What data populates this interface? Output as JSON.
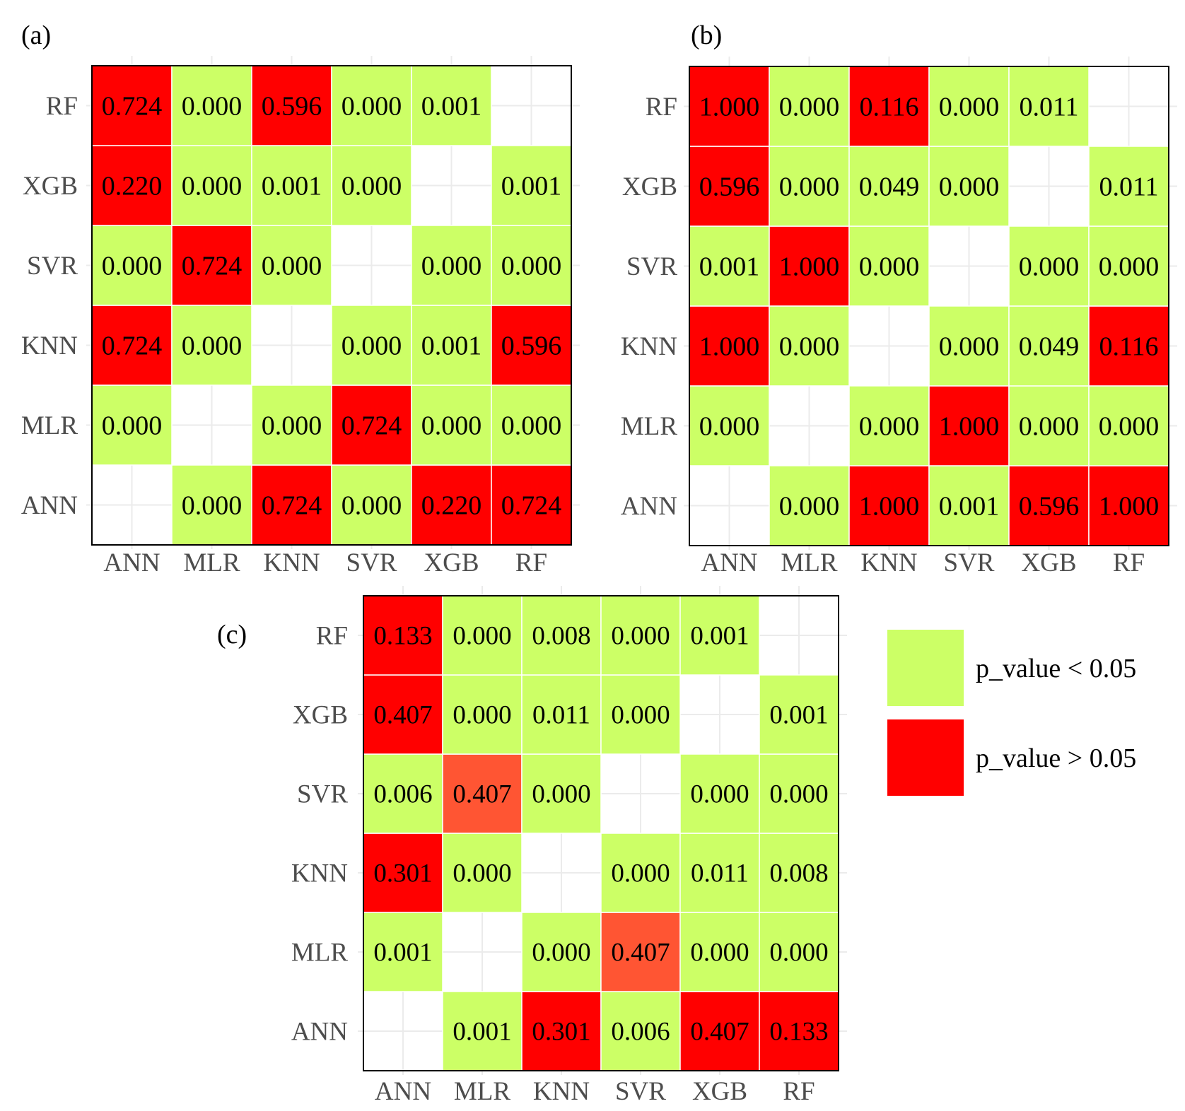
{
  "colors": {
    "significant": "#ccff66",
    "not_significant": "#ff0000",
    "not_significant_light": "#ff5533",
    "empty": "#ffffff",
    "grid": "#ebebeb",
    "border": "#000000"
  },
  "chart_data": [
    {
      "type": "heatmap",
      "panel_label": "(a)",
      "x_categories": [
        "ANN",
        "MLR",
        "KNN",
        "SVR",
        "XGB",
        "RF"
      ],
      "y_categories": [
        "ANN",
        "MLR",
        "KNN",
        "SVR",
        "XGB",
        "RF"
      ],
      "cells": [
        {
          "x": "MLR",
          "y": "ANN",
          "value": "0.000",
          "class": "significant"
        },
        {
          "x": "KNN",
          "y": "ANN",
          "value": "0.724",
          "class": "not_significant"
        },
        {
          "x": "SVR",
          "y": "ANN",
          "value": "0.000",
          "class": "significant"
        },
        {
          "x": "XGB",
          "y": "ANN",
          "value": "0.220",
          "class": "not_significant"
        },
        {
          "x": "RF",
          "y": "ANN",
          "value": "0.724",
          "class": "not_significant"
        },
        {
          "x": "ANN",
          "y": "MLR",
          "value": "0.000",
          "class": "significant"
        },
        {
          "x": "KNN",
          "y": "MLR",
          "value": "0.000",
          "class": "significant"
        },
        {
          "x": "SVR",
          "y": "MLR",
          "value": "0.724",
          "class": "not_significant"
        },
        {
          "x": "XGB",
          "y": "MLR",
          "value": "0.000",
          "class": "significant"
        },
        {
          "x": "RF",
          "y": "MLR",
          "value": "0.000",
          "class": "significant"
        },
        {
          "x": "ANN",
          "y": "KNN",
          "value": "0.724",
          "class": "not_significant"
        },
        {
          "x": "MLR",
          "y": "KNN",
          "value": "0.000",
          "class": "significant"
        },
        {
          "x": "SVR",
          "y": "KNN",
          "value": "0.000",
          "class": "significant"
        },
        {
          "x": "XGB",
          "y": "KNN",
          "value": "0.001",
          "class": "significant"
        },
        {
          "x": "RF",
          "y": "KNN",
          "value": "0.596",
          "class": "not_significant"
        },
        {
          "x": "ANN",
          "y": "SVR",
          "value": "0.000",
          "class": "significant"
        },
        {
          "x": "MLR",
          "y": "SVR",
          "value": "0.724",
          "class": "not_significant"
        },
        {
          "x": "KNN",
          "y": "SVR",
          "value": "0.000",
          "class": "significant"
        },
        {
          "x": "XGB",
          "y": "SVR",
          "value": "0.000",
          "class": "significant"
        },
        {
          "x": "RF",
          "y": "SVR",
          "value": "0.000",
          "class": "significant"
        },
        {
          "x": "ANN",
          "y": "XGB",
          "value": "0.220",
          "class": "not_significant"
        },
        {
          "x": "MLR",
          "y": "XGB",
          "value": "0.000",
          "class": "significant"
        },
        {
          "x": "KNN",
          "y": "XGB",
          "value": "0.001",
          "class": "significant"
        },
        {
          "x": "SVR",
          "y": "XGB",
          "value": "0.000",
          "class": "significant"
        },
        {
          "x": "RF",
          "y": "XGB",
          "value": "0.001",
          "class": "significant"
        },
        {
          "x": "ANN",
          "y": "RF",
          "value": "0.724",
          "class": "not_significant"
        },
        {
          "x": "MLR",
          "y": "RF",
          "value": "0.000",
          "class": "significant"
        },
        {
          "x": "KNN",
          "y": "RF",
          "value": "0.596",
          "class": "not_significant"
        },
        {
          "x": "SVR",
          "y": "RF",
          "value": "0.000",
          "class": "significant"
        },
        {
          "x": "XGB",
          "y": "RF",
          "value": "0.001",
          "class": "significant"
        }
      ]
    },
    {
      "type": "heatmap",
      "panel_label": "(b)",
      "x_categories": [
        "ANN",
        "MLR",
        "KNN",
        "SVR",
        "XGB",
        "RF"
      ],
      "y_categories": [
        "ANN",
        "MLR",
        "KNN",
        "SVR",
        "XGB",
        "RF"
      ],
      "cells": [
        {
          "x": "MLR",
          "y": "ANN",
          "value": "0.000",
          "class": "significant"
        },
        {
          "x": "KNN",
          "y": "ANN",
          "value": "1.000",
          "class": "not_significant"
        },
        {
          "x": "SVR",
          "y": "ANN",
          "value": "0.001",
          "class": "significant"
        },
        {
          "x": "XGB",
          "y": "ANN",
          "value": "0.596",
          "class": "not_significant"
        },
        {
          "x": "RF",
          "y": "ANN",
          "value": "1.000",
          "class": "not_significant"
        },
        {
          "x": "ANN",
          "y": "MLR",
          "value": "0.000",
          "class": "significant"
        },
        {
          "x": "KNN",
          "y": "MLR",
          "value": "0.000",
          "class": "significant"
        },
        {
          "x": "SVR",
          "y": "MLR",
          "value": "1.000",
          "class": "not_significant"
        },
        {
          "x": "XGB",
          "y": "MLR",
          "value": "0.000",
          "class": "significant"
        },
        {
          "x": "RF",
          "y": "MLR",
          "value": "0.000",
          "class": "significant"
        },
        {
          "x": "ANN",
          "y": "KNN",
          "value": "1.000",
          "class": "not_significant"
        },
        {
          "x": "MLR",
          "y": "KNN",
          "value": "0.000",
          "class": "significant"
        },
        {
          "x": "SVR",
          "y": "KNN",
          "value": "0.000",
          "class": "significant"
        },
        {
          "x": "XGB",
          "y": "KNN",
          "value": "0.049",
          "class": "significant"
        },
        {
          "x": "RF",
          "y": "KNN",
          "value": "0.116",
          "class": "not_significant"
        },
        {
          "x": "ANN",
          "y": "SVR",
          "value": "0.001",
          "class": "significant"
        },
        {
          "x": "MLR",
          "y": "SVR",
          "value": "1.000",
          "class": "not_significant"
        },
        {
          "x": "KNN",
          "y": "SVR",
          "value": "0.000",
          "class": "significant"
        },
        {
          "x": "XGB",
          "y": "SVR",
          "value": "0.000",
          "class": "significant"
        },
        {
          "x": "RF",
          "y": "SVR",
          "value": "0.000",
          "class": "significant"
        },
        {
          "x": "ANN",
          "y": "XGB",
          "value": "0.596",
          "class": "not_significant"
        },
        {
          "x": "MLR",
          "y": "XGB",
          "value": "0.000",
          "class": "significant"
        },
        {
          "x": "KNN",
          "y": "XGB",
          "value": "0.049",
          "class": "significant"
        },
        {
          "x": "SVR",
          "y": "XGB",
          "value": "0.000",
          "class": "significant"
        },
        {
          "x": "RF",
          "y": "XGB",
          "value": "0.011",
          "class": "significant"
        },
        {
          "x": "ANN",
          "y": "RF",
          "value": "1.000",
          "class": "not_significant"
        },
        {
          "x": "MLR",
          "y": "RF",
          "value": "0.000",
          "class": "significant"
        },
        {
          "x": "KNN",
          "y": "RF",
          "value": "0.116",
          "class": "not_significant"
        },
        {
          "x": "SVR",
          "y": "RF",
          "value": "0.000",
          "class": "significant"
        },
        {
          "x": "XGB",
          "y": "RF",
          "value": "0.011",
          "class": "significant"
        }
      ]
    },
    {
      "type": "heatmap",
      "panel_label": "(c)",
      "x_categories": [
        "ANN",
        "MLR",
        "KNN",
        "SVR",
        "XGB",
        "RF"
      ],
      "y_categories": [
        "ANN",
        "MLR",
        "KNN",
        "SVR",
        "XGB",
        "RF"
      ],
      "cells": [
        {
          "x": "MLR",
          "y": "ANN",
          "value": "0.001",
          "class": "significant"
        },
        {
          "x": "KNN",
          "y": "ANN",
          "value": "0.301",
          "class": "not_significant"
        },
        {
          "x": "SVR",
          "y": "ANN",
          "value": "0.006",
          "class": "significant"
        },
        {
          "x": "XGB",
          "y": "ANN",
          "value": "0.407",
          "class": "not_significant"
        },
        {
          "x": "RF",
          "y": "ANN",
          "value": "0.133",
          "class": "not_significant"
        },
        {
          "x": "ANN",
          "y": "MLR",
          "value": "0.001",
          "class": "significant"
        },
        {
          "x": "KNN",
          "y": "MLR",
          "value": "0.000",
          "class": "significant"
        },
        {
          "x": "SVR",
          "y": "MLR",
          "value": "0.407",
          "class": "not_significant_light"
        },
        {
          "x": "XGB",
          "y": "MLR",
          "value": "0.000",
          "class": "significant"
        },
        {
          "x": "RF",
          "y": "MLR",
          "value": "0.000",
          "class": "significant"
        },
        {
          "x": "ANN",
          "y": "KNN",
          "value": "0.301",
          "class": "not_significant"
        },
        {
          "x": "MLR",
          "y": "KNN",
          "value": "0.000",
          "class": "significant"
        },
        {
          "x": "SVR",
          "y": "KNN",
          "value": "0.000",
          "class": "significant"
        },
        {
          "x": "XGB",
          "y": "KNN",
          "value": "0.011",
          "class": "significant"
        },
        {
          "x": "RF",
          "y": "KNN",
          "value": "0.008",
          "class": "significant"
        },
        {
          "x": "ANN",
          "y": "SVR",
          "value": "0.006",
          "class": "significant"
        },
        {
          "x": "MLR",
          "y": "SVR",
          "value": "0.407",
          "class": "not_significant_light"
        },
        {
          "x": "KNN",
          "y": "SVR",
          "value": "0.000",
          "class": "significant"
        },
        {
          "x": "XGB",
          "y": "SVR",
          "value": "0.000",
          "class": "significant"
        },
        {
          "x": "RF",
          "y": "SVR",
          "value": "0.000",
          "class": "significant"
        },
        {
          "x": "ANN",
          "y": "XGB",
          "value": "0.407",
          "class": "not_significant"
        },
        {
          "x": "MLR",
          "y": "XGB",
          "value": "0.000",
          "class": "significant"
        },
        {
          "x": "KNN",
          "y": "XGB",
          "value": "0.011",
          "class": "significant"
        },
        {
          "x": "SVR",
          "y": "XGB",
          "value": "0.000",
          "class": "significant"
        },
        {
          "x": "RF",
          "y": "XGB",
          "value": "0.001",
          "class": "significant"
        },
        {
          "x": "ANN",
          "y": "RF",
          "value": "0.133",
          "class": "not_significant"
        },
        {
          "x": "MLR",
          "y": "RF",
          "value": "0.000",
          "class": "significant"
        },
        {
          "x": "KNN",
          "y": "RF",
          "value": "0.008",
          "class": "significant"
        },
        {
          "x": "SVR",
          "y": "RF",
          "value": "0.000",
          "class": "significant"
        },
        {
          "x": "XGB",
          "y": "RF",
          "value": "0.001",
          "class": "significant"
        }
      ]
    }
  ],
  "legend": {
    "placement": "right-of-panel-c",
    "entries": [
      {
        "label": "p_value < 0.05",
        "class": "significant"
      },
      {
        "label": "p_value > 0.05",
        "class": "not_significant"
      }
    ]
  }
}
